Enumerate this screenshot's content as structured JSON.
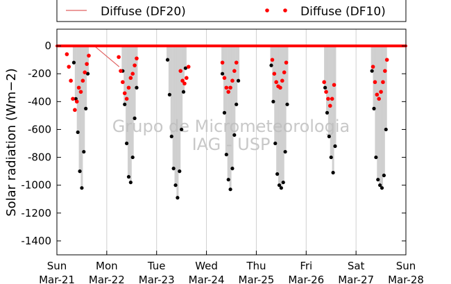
{
  "chart_data": {
    "type": "scatter",
    "title": "",
    "xlabel": "",
    "ylabel": "Solar radiation (Wm−2)",
    "ylim": [
      -1500,
      120
    ],
    "xlim": [
      0,
      7
    ],
    "yticks": [
      0,
      -200,
      -400,
      -600,
      -800,
      -1000,
      -1200,
      -1400
    ],
    "xticks": [
      {
        "day": "Sun",
        "date": "Mar-21"
      },
      {
        "day": "Mon",
        "date": "Mar-22"
      },
      {
        "day": "Tue",
        "date": "Mar-23"
      },
      {
        "day": "Wed",
        "date": "Mar-24"
      },
      {
        "day": "Thu",
        "date": "Mar-25"
      },
      {
        "day": "Fri",
        "date": "Mar-26"
      },
      {
        "day": "Sat",
        "date": "Mar-27"
      },
      {
        "day": "Sun",
        "date": "Mar-28"
      }
    ],
    "grid": {
      "x": true,
      "y": false
    },
    "legend": {
      "placement": "top",
      "entries": [
        {
          "label": "Diffuse (DF20)",
          "style": "line",
          "color": "#e06060"
        },
        {
          "label": "Diffuse (DF10)",
          "style": "dots",
          "color": "#ff0000"
        }
      ]
    },
    "watermark": [
      "Grupo de Micrometeorologia",
      "IAG - USP"
    ],
    "colors": {
      "global": "#000000",
      "df10": "#ff0000",
      "df20": "#e06060",
      "spread": "#bdbdbd"
    },
    "series": [
      {
        "key": "global",
        "x": [
          0.34,
          0.38,
          0.42,
          0.46,
          0.5,
          0.54,
          0.58,
          0.62,
          1.32,
          1.36,
          1.4,
          1.44,
          1.48,
          1.52,
          1.56,
          1.6,
          2.22,
          2.26,
          2.3,
          2.34,
          2.38,
          2.42,
          2.46,
          2.5,
          2.54,
          2.58,
          3.32,
          3.36,
          3.4,
          3.44,
          3.48,
          3.52,
          3.56,
          3.6,
          3.64,
          4.3,
          4.34,
          4.38,
          4.42,
          4.46,
          4.5,
          4.54,
          4.58,
          4.62,
          5.38,
          5.42,
          5.46,
          5.5,
          5.54,
          5.58,
          6.32,
          6.36,
          6.4,
          6.44,
          6.48,
          6.52,
          6.56,
          6.6
        ],
        "y": [
          -120,
          -380,
          -620,
          -900,
          -1020,
          -760,
          -450,
          -200,
          -180,
          -420,
          -700,
          -940,
          -980,
          -800,
          -520,
          -300,
          -100,
          -350,
          -650,
          -880,
          -1000,
          -1090,
          -900,
          -600,
          -330,
          -160,
          -200,
          -480,
          -780,
          -960,
          -1030,
          -880,
          -640,
          -420,
          -250,
          -140,
          -400,
          -700,
          -920,
          -1000,
          -1020,
          -980,
          -760,
          -420,
          -300,
          -480,
          -650,
          -800,
          -910,
          -720,
          -180,
          -450,
          -800,
          -960,
          -1000,
          -1020,
          -930,
          -600
        ]
      },
      {
        "key": "df10",
        "name": "Diffuse (DF10)",
        "x": [
          0.2,
          0.24,
          0.28,
          0.32,
          0.36,
          0.4,
          0.44,
          0.48,
          0.52,
          0.56,
          0.6,
          0.64,
          1.24,
          1.28,
          1.32,
          1.36,
          1.4,
          1.44,
          1.48,
          1.52,
          1.56,
          1.6,
          2.48,
          2.52,
          2.56,
          2.6,
          2.64,
          3.32,
          3.36,
          3.4,
          3.44,
          3.48,
          3.52,
          3.56,
          3.6,
          4.32,
          4.36,
          4.4,
          4.44,
          4.48,
          4.52,
          4.56,
          4.6,
          5.36,
          5.4,
          5.44,
          5.48,
          5.52,
          5.56,
          6.34,
          6.38,
          6.42,
          6.46,
          6.5,
          6.54,
          6.58,
          6.62
        ],
        "y": [
          -60,
          -150,
          -250,
          -380,
          -460,
          -400,
          -300,
          -330,
          -250,
          -190,
          -130,
          -70,
          -80,
          -180,
          -260,
          -340,
          -380,
          -300,
          -230,
          -200,
          -140,
          -90,
          -180,
          -250,
          -270,
          -230,
          -150,
          -120,
          -230,
          -300,
          -330,
          -300,
          -250,
          -180,
          -120,
          -100,
          -200,
          -260,
          -290,
          -300,
          -250,
          -190,
          -120,
          -260,
          -330,
          -380,
          -430,
          -380,
          -280,
          -150,
          -260,
          -350,
          -380,
          -330,
          -260,
          -180,
          -100
        ]
      },
      {
        "key": "df20",
        "name": "Diffuse (DF20)",
        "x": [
          0.1,
          0.75,
          1.25
        ],
        "y": [
          0,
          0,
          -150
        ]
      }
    ]
  }
}
